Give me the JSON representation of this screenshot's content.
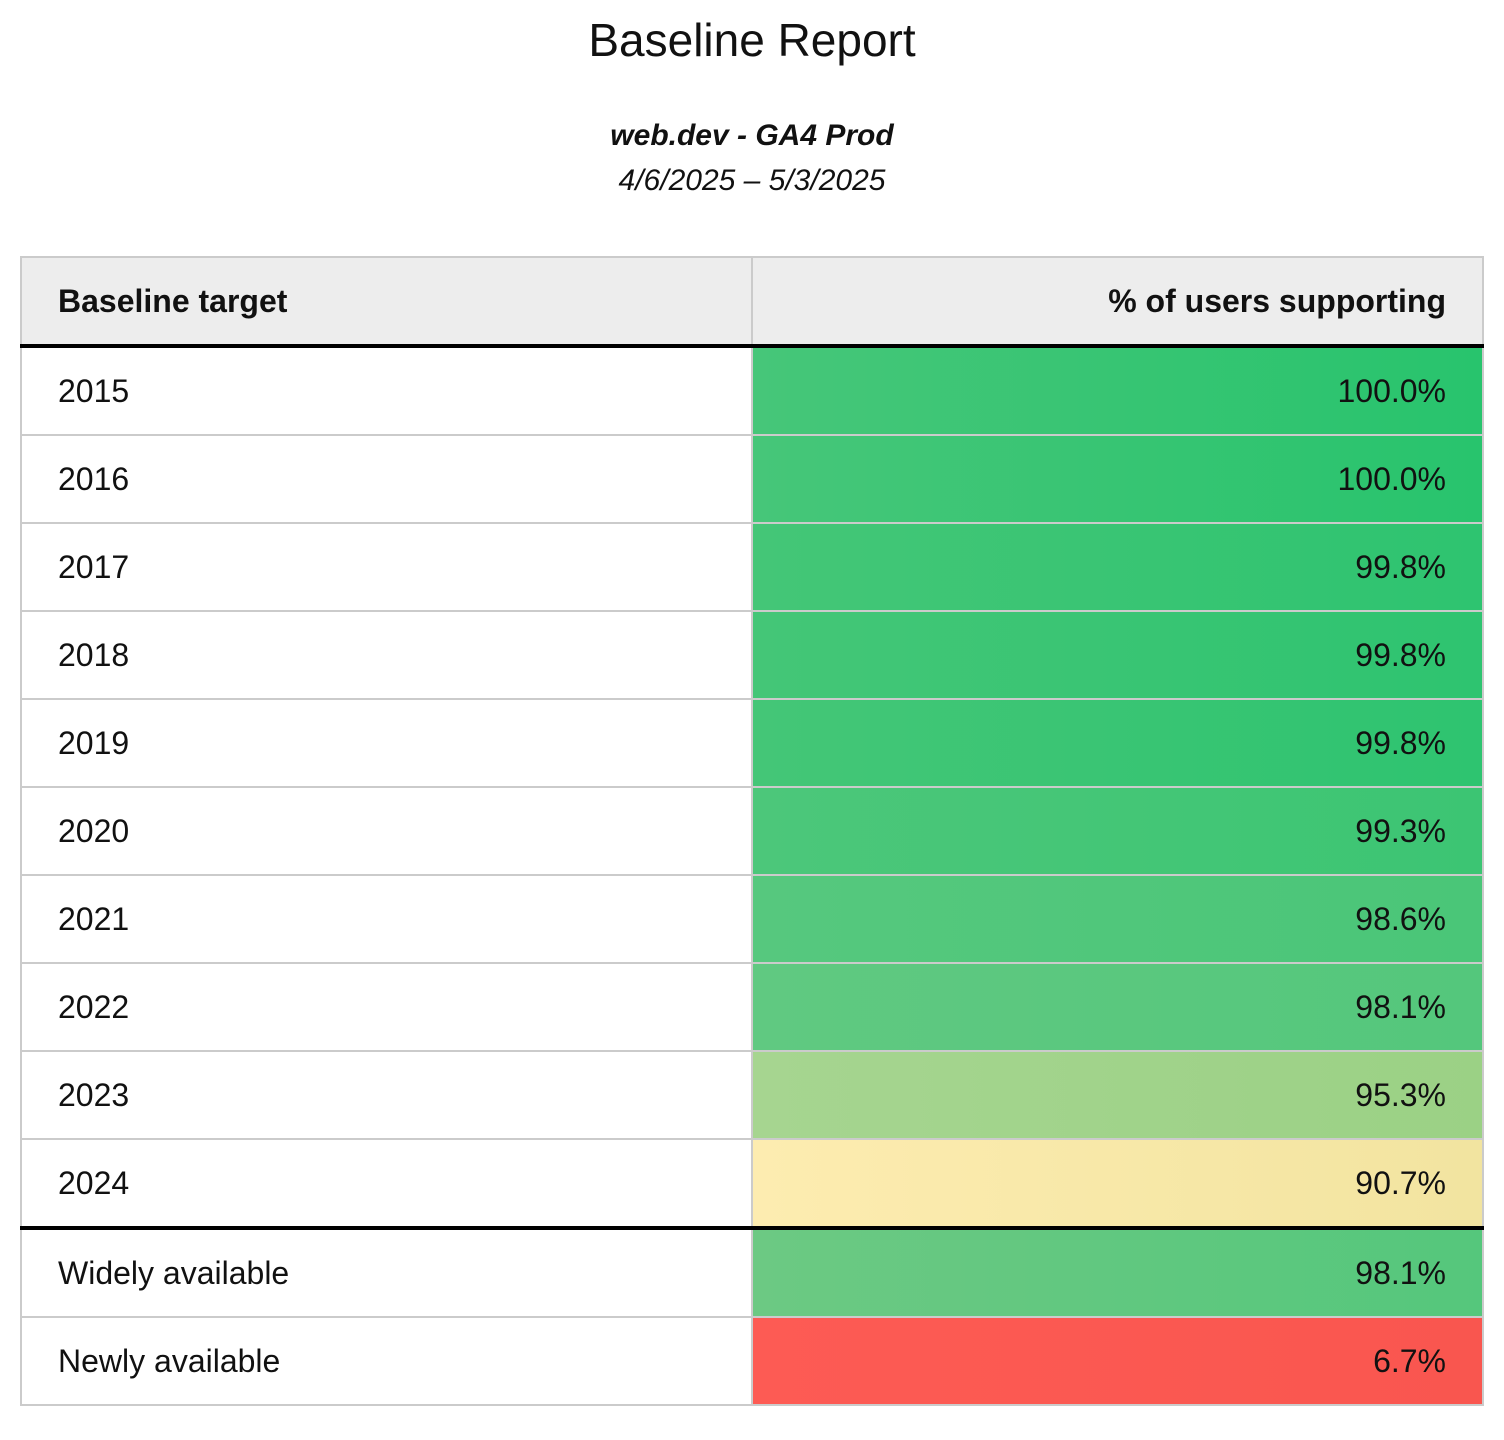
{
  "report": {
    "title": "Baseline Report",
    "property_name": "web.dev - GA4 Prod",
    "date_range": "4/6/2025 – 5/3/2025"
  },
  "table": {
    "header": {
      "target": "Baseline target",
      "support": "% of users supporting"
    },
    "rows": [
      {
        "target": "2015",
        "value": "100.0%",
        "color_left": "#46c679",
        "color_right": "#28c46d"
      },
      {
        "target": "2016",
        "value": "100.0%",
        "color_left": "#46c679",
        "color_right": "#28c46d"
      },
      {
        "target": "2017",
        "value": "99.8%",
        "color_left": "#44c677",
        "color_right": "#2ec470"
      },
      {
        "target": "2018",
        "value": "99.8%",
        "color_left": "#44c677",
        "color_right": "#2ec470"
      },
      {
        "target": "2019",
        "value": "99.8%",
        "color_left": "#44c677",
        "color_right": "#2ec470"
      },
      {
        "target": "2020",
        "value": "99.3%",
        "color_left": "#4cc77a",
        "color_right": "#3cc573"
      },
      {
        "target": "2021",
        "value": "98.6%",
        "color_left": "#56c87e",
        "color_right": "#4ac678"
      },
      {
        "target": "2022",
        "value": "98.1%",
        "color_left": "#60c981",
        "color_right": "#54c77c"
      },
      {
        "target": "2023",
        "value": "95.3%",
        "color_left": "#a6d590",
        "color_right": "#9bd185"
      },
      {
        "target": "2024",
        "value": "90.7%",
        "color_left": "#fdecb0",
        "color_right": "#f2e4a0"
      },
      {
        "target": "Widely available",
        "value": "98.1%",
        "color_left": "#6cc983",
        "color_right": "#55c77c"
      },
      {
        "target": "Newly available",
        "value": "6.7%",
        "color_left": "#fd5b54",
        "color_right": "#f9564f"
      }
    ],
    "colors": {
      "header_bg": "#ededed",
      "grid_border": "#cbcbcb",
      "section_border": "#000000"
    }
  },
  "chart_data": {
    "type": "table",
    "title": "Baseline Report",
    "subtitle": "web.dev - GA4 Prod",
    "date_range": "4/6/2025 – 5/3/2025",
    "columns": [
      "Baseline target",
      "% of users supporting"
    ],
    "categories": [
      "2015",
      "2016",
      "2017",
      "2018",
      "2019",
      "2020",
      "2021",
      "2022",
      "2023",
      "2024",
      "Widely available",
      "Newly available"
    ],
    "values": [
      100.0,
      100.0,
      99.8,
      99.8,
      99.8,
      99.3,
      98.6,
      98.1,
      95.3,
      90.7,
      98.1,
      6.7
    ],
    "value_unit": "%",
    "color_scale": "green (high) to yellow to red (low), cell background encodes value",
    "layout": "two-column table, values right-aligned, year rows separated from summary rows by thick black rule"
  }
}
